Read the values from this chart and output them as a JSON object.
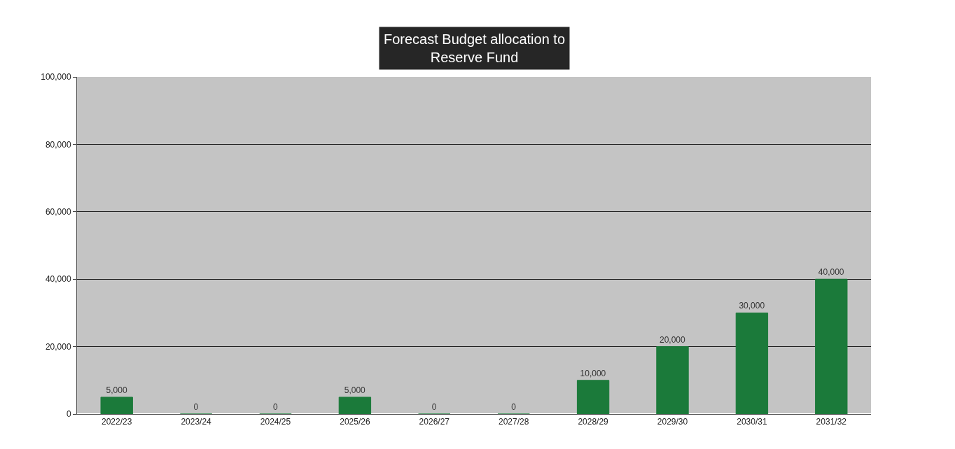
{
  "chart_data": {
    "type": "bar",
    "title": "Forecast Budget allocation to\nReserve Fund",
    "categories": [
      "2022/23",
      "2023/24",
      "2024/25",
      "2025/26",
      "2026/27",
      "2027/28",
      "2028/29",
      "2029/30",
      "2030/31",
      "2031/32"
    ],
    "values": [
      5000,
      0,
      0,
      5000,
      0,
      0,
      10000,
      20000,
      30000,
      40000
    ],
    "value_labels": [
      "5,000",
      "0",
      "0",
      "5,000",
      "0",
      "0",
      "10,000",
      "20,000",
      "30,000",
      "40,000"
    ],
    "color": "#1b7a3a",
    "ylim": [
      0,
      100000
    ],
    "yticks": [
      {
        "value": 0,
        "label": "0"
      },
      {
        "value": 20000,
        "label": "20,000"
      },
      {
        "value": 40000,
        "label": "40,000"
      },
      {
        "value": 60000,
        "label": "60,000"
      },
      {
        "value": 80000,
        "label": "80,000"
      },
      {
        "value": 100000,
        "label": "100,000"
      }
    ],
    "grid": "y"
  }
}
